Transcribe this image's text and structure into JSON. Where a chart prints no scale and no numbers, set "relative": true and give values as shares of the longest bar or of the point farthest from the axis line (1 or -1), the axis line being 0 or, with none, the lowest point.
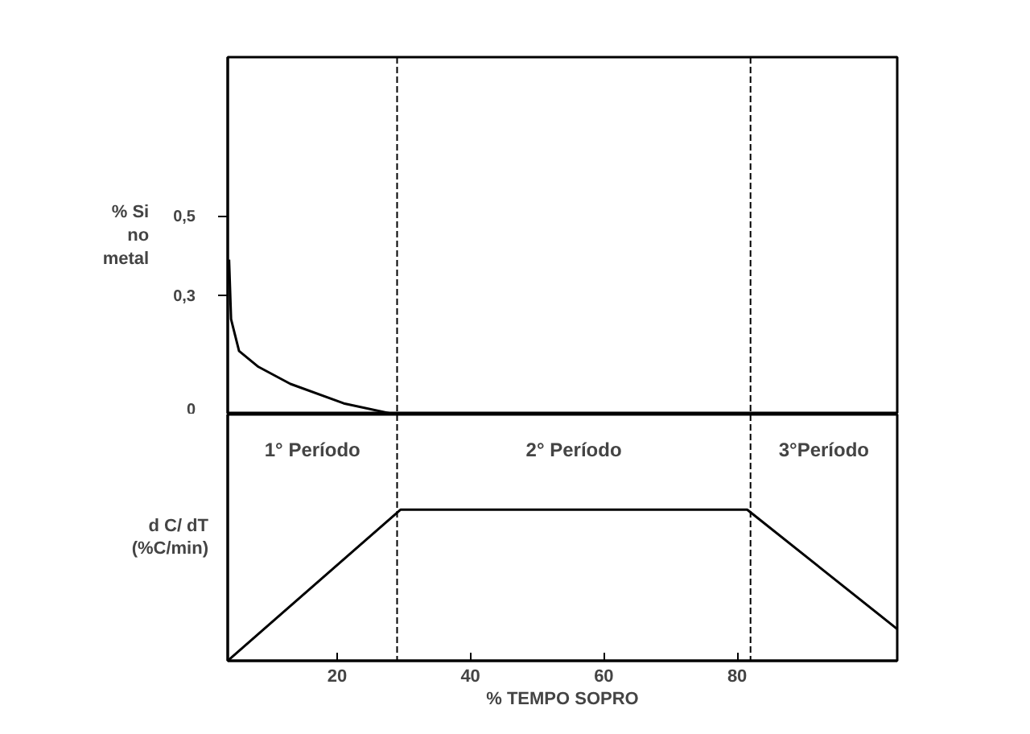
{
  "chart_data": [
    {
      "type": "line",
      "ylabel": "% Si no metal",
      "x": [
        3.8,
        4.1,
        5.3,
        8.2,
        13,
        21,
        28.7
      ],
      "values": [
        0.39,
        0.24,
        0.16,
        0.12,
        0.077,
        0.028,
        0
      ],
      "color": "#000000",
      "xlim": [
        3.6,
        104
      ],
      "ylim": [
        0,
        0.9
      ],
      "yticks": [
        0,
        {
          "value": 0.3,
          "label": "0,3"
        },
        {
          "value": 0.5,
          "label": "0,5"
        }
      ],
      "tick_labels": "y",
      "grid": false,
      "ref_lines": [
        {
          "axis": "x",
          "value": 29,
          "line_style": "dashed",
          "color": "#000000"
        },
        {
          "axis": "x",
          "value": 82,
          "line_style": "dashed",
          "color": "#000000"
        }
      ]
    },
    {
      "type": "line",
      "relative": true,
      "ylabel": "d C/ dT (%C/min)",
      "xlabel": "% TEMPO SOPRO",
      "x": [
        3.6,
        29.5,
        81.5,
        104
      ],
      "values": [
        0,
        1,
        1,
        0.21
      ],
      "color": "#000000",
      "xlim": [
        3.6,
        104
      ],
      "xticks": [
        20,
        40,
        60,
        80
      ],
      "tick_labels": "x",
      "grid": false,
      "annotations": [
        "1° Período",
        "2° Período",
        "3°Período"
      ],
      "ref_lines": [
        {
          "axis": "x",
          "value": 29,
          "line_style": "dashed",
          "color": "#000000"
        },
        {
          "axis": "x",
          "value": 82,
          "line_style": "dashed",
          "color": "#000000"
        }
      ]
    }
  ]
}
